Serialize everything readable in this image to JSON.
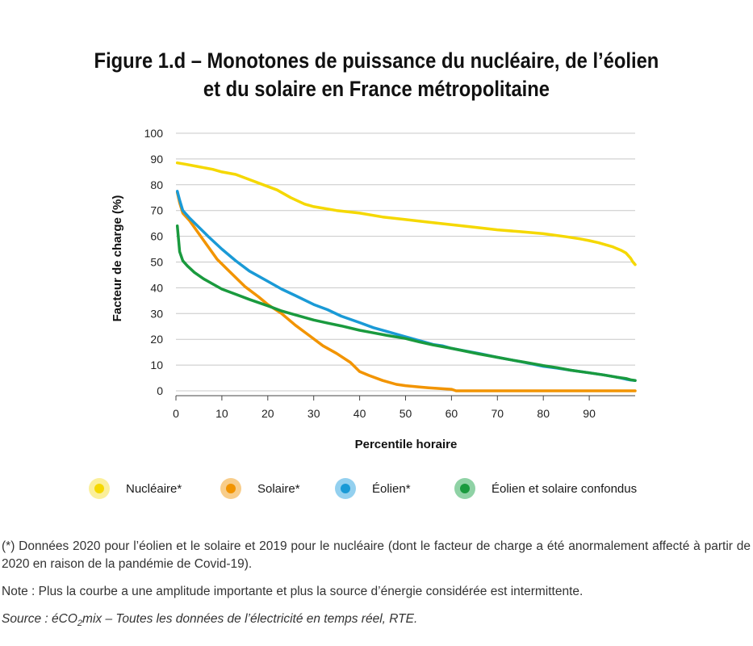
{
  "title": {
    "line1": "Figure 1.d – Monotones de puissance du nucléaire, de l’éolien",
    "line2": "et du solaire en France métropolitaine"
  },
  "colors": {
    "nucleaire": "#f5d800",
    "solaire": "#f29400",
    "eolien": "#1a9ad6",
    "eolien_solaire": "#1a9a3e"
  },
  "legend": [
    {
      "label": "Nucléaire*",
      "color": "#f5d800",
      "halo": "#fbef9a"
    },
    {
      "label": "Solaire*",
      "color": "#f29400",
      "halo": "#f8cd8a"
    },
    {
      "label": "Éolien*",
      "color": "#1a9ad6",
      "halo": "#93d0ef"
    },
    {
      "label": "Éolien et solaire confondus",
      "color": "#1a9a3e",
      "halo": "#8fd2a5"
    }
  ],
  "notes": {
    "footnote": "(*) Données 2020 pour l’éolien et le solaire et 2019 pour le nucléaire (dont le facteur de charge a été anormalement affecté à partir de 2020 en raison de la pandémie de Covid-19).",
    "note": "Note : Plus la courbe a une amplitude importante et plus la source d’énergie considérée est intermittente.",
    "source_prefix": "Source : éCO",
    "source_sub": "2",
    "source_suffix": "mix – Toutes les données de l’électricité en temps réel, RTE."
  },
  "chart_data": {
    "type": "line",
    "xlabel": "Percentile horaire",
    "ylabel": "Facteur de charge (%)",
    "xlim": [
      0,
      100
    ],
    "ylim": [
      0,
      100
    ],
    "xticks": [
      0,
      10,
      20,
      30,
      40,
      50,
      60,
      70,
      80,
      90
    ],
    "yticks": [
      0,
      10,
      20,
      30,
      40,
      50,
      60,
      70,
      80,
      90,
      100
    ],
    "grid": "horizontal",
    "legend_position": "bottom",
    "series": [
      {
        "name": "Nucléaire*",
        "color": "#f5d800",
        "x": [
          0.3,
          2,
          5,
          8,
          10,
          13,
          16,
          19,
          22,
          25,
          28,
          30,
          35,
          40,
          45,
          50,
          55,
          60,
          65,
          70,
          75,
          80,
          85,
          88,
          90,
          92,
          95,
          97,
          98,
          99,
          99.5,
          100
        ],
        "y": [
          88.5,
          88,
          87,
          86,
          85,
          84,
          82,
          80,
          78,
          75,
          72.5,
          71.5,
          70,
          69,
          67.5,
          66.5,
          65.5,
          64.5,
          63.5,
          62.5,
          61.8,
          61,
          59.8,
          59,
          58.3,
          57.5,
          56,
          54.5,
          53.5,
          51.5,
          50,
          49
        ]
      },
      {
        "name": "Solaire*",
        "color": "#f29400",
        "x": [
          0.3,
          0.8,
          1.5,
          3,
          5,
          7,
          9,
          11,
          13,
          15,
          18,
          20,
          23,
          26,
          29,
          32,
          35,
          38,
          40,
          42,
          45,
          48,
          50,
          53,
          55,
          58,
          60,
          60.5,
          61,
          65,
          70,
          80,
          90,
          100
        ],
        "y": [
          77,
          73,
          69,
          66,
          61,
          56,
          51,
          47.5,
          44,
          40.5,
          36.5,
          33.5,
          30,
          25.5,
          21.5,
          17.5,
          14.5,
          11,
          7.5,
          6,
          4,
          2.5,
          2,
          1.5,
          1.2,
          0.8,
          0.6,
          0.3,
          0,
          0,
          0,
          0,
          0,
          0
        ]
      },
      {
        "name": "Éolien*",
        "color": "#1a9ad6",
        "x": [
          0.3,
          0.8,
          1.5,
          3,
          5,
          7,
          10,
          13,
          16,
          20,
          23,
          26,
          30,
          33,
          36,
          40,
          43,
          46,
          50,
          53,
          56,
          58,
          60,
          63,
          66,
          70,
          73,
          76,
          80,
          83,
          86,
          90,
          93,
          96,
          98,
          99,
          100
        ],
        "y": [
          77.5,
          74,
          70,
          67,
          63.5,
          60,
          55,
          50.5,
          46.5,
          42.5,
          39.5,
          37,
          33.5,
          31.5,
          29,
          26.5,
          24.5,
          23,
          21,
          19.5,
          18,
          17.5,
          16.5,
          15.5,
          14.5,
          13,
          12,
          11,
          9.5,
          8.8,
          8,
          7,
          6.2,
          5.3,
          4.5,
          4.2,
          4
        ]
      },
      {
        "name": "Éolien et solaire confondus",
        "color": "#1a9a3e",
        "x": [
          0.3,
          0.8,
          1.5,
          2.5,
          4,
          6,
          8,
          10,
          13,
          16,
          20,
          23,
          26,
          30,
          33,
          36,
          40,
          43,
          46,
          50,
          53,
          56,
          60,
          63,
          66,
          70,
          73,
          76,
          80,
          83,
          86,
          90,
          93,
          96,
          98,
          99,
          100
        ],
        "y": [
          64,
          54,
          50.5,
          48.5,
          46,
          43.5,
          41.5,
          39.5,
          37.5,
          35.5,
          33,
          31,
          29.5,
          27.5,
          26.3,
          25.2,
          23.5,
          22.5,
          21.5,
          20.3,
          19,
          17.8,
          16.5,
          15.4,
          14.3,
          13,
          12,
          11.1,
          9.8,
          9,
          8,
          7,
          6.2,
          5.3,
          4.8,
          4.3,
          4
        ]
      }
    ]
  }
}
